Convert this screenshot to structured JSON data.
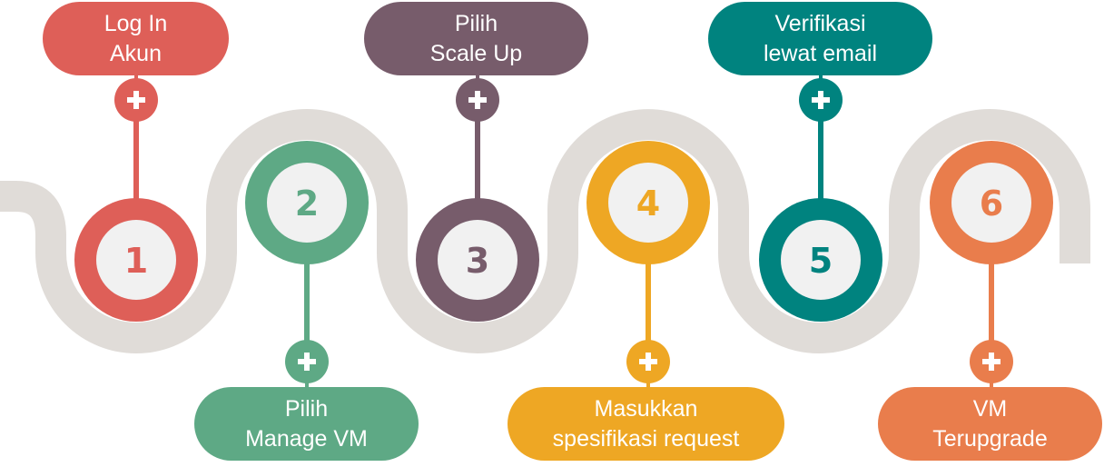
{
  "colors": {
    "track": "#e0dcd8",
    "plus": "#ffffff",
    "inner_circle": "#f1f1f1"
  },
  "steps": [
    {
      "number": "1",
      "label_lines": [
        "Log In",
        "Akun"
      ],
      "color": "#de5f58",
      "icon": "plus-icon"
    },
    {
      "number": "2",
      "label_lines": [
        "Pilih",
        "Manage VM"
      ],
      "color": "#5ea985",
      "icon": "plus-icon"
    },
    {
      "number": "3",
      "label_lines": [
        "Pilih",
        "Scale Up"
      ],
      "color": "#775c6b",
      "icon": "plus-icon"
    },
    {
      "number": "4",
      "label_lines": [
        "Masukkan",
        "spesifikasi request"
      ],
      "color": "#eea724",
      "icon": "plus-icon"
    },
    {
      "number": "5",
      "label_lines": [
        "Verifikasi",
        "lewat email"
      ],
      "color": "#00837f",
      "icon": "plus-icon"
    },
    {
      "number": "6",
      "label_lines": [
        "VM",
        "Terupgrade"
      ],
      "color": "#e97d4c",
      "icon": "plus-icon"
    }
  ]
}
